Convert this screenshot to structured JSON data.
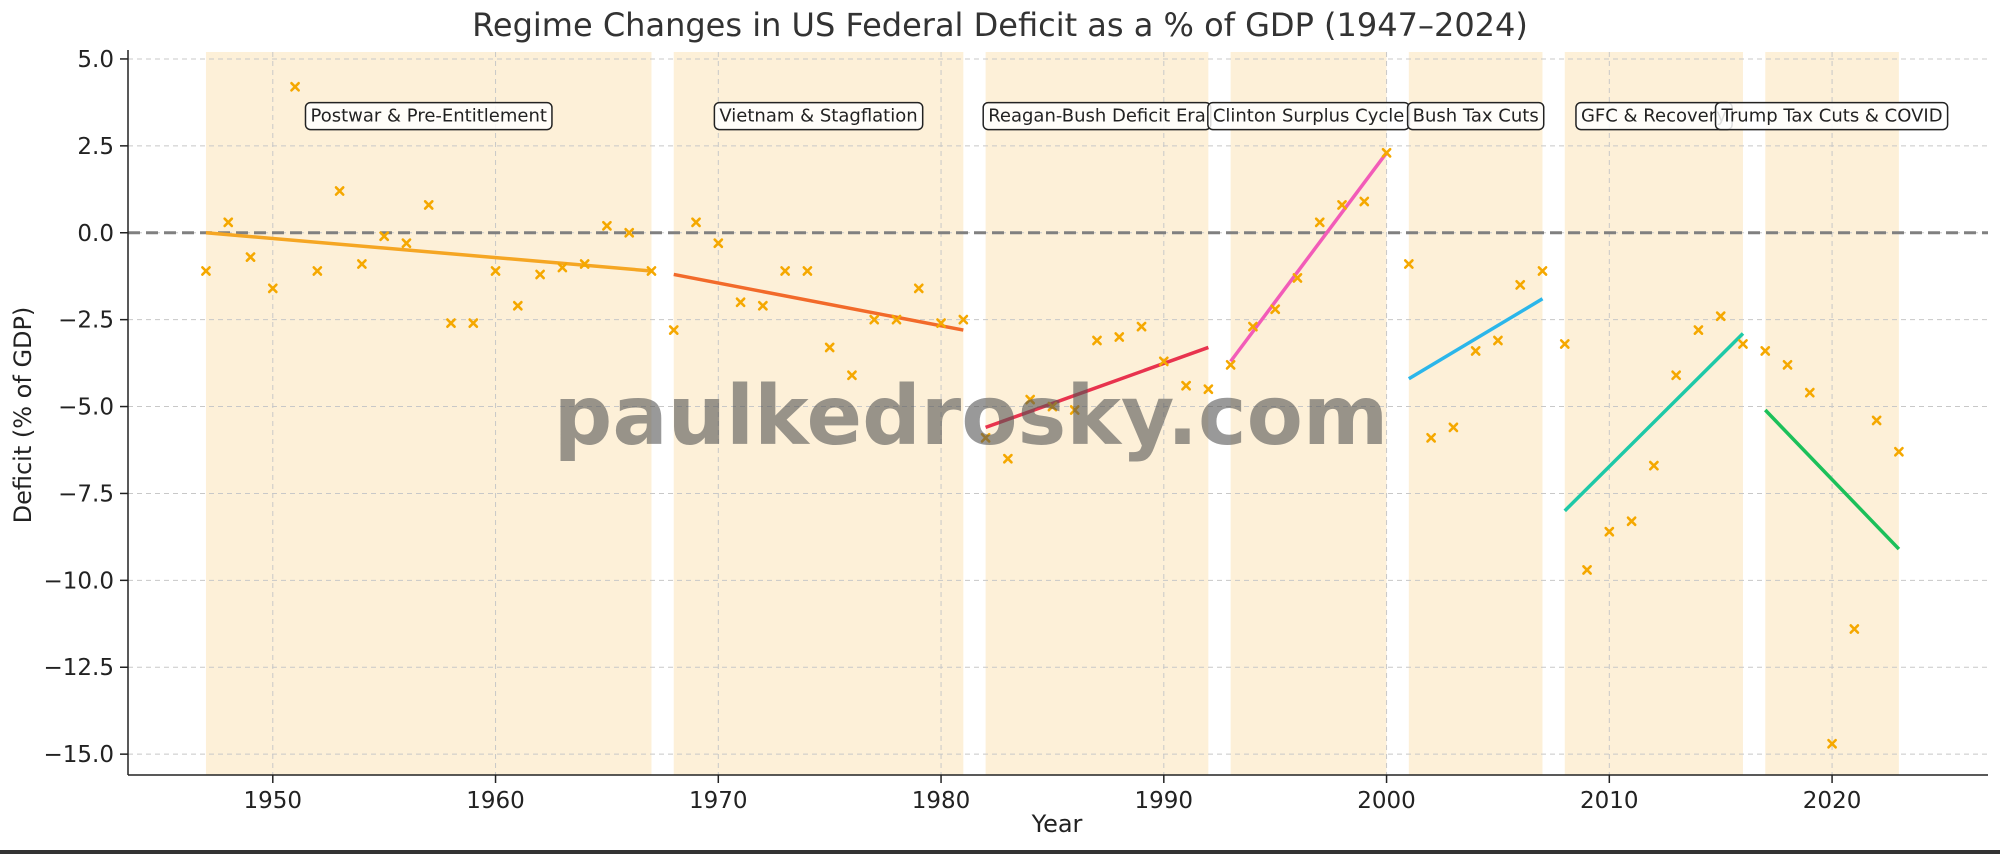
{
  "chart_data": {
    "type": "scatter",
    "title": "Regime Changes in US Federal Deficit as a % of GDP (1947–2024)",
    "xlabel": "Year",
    "ylabel": "Deficit (% of GDP)",
    "xlim": [
      1943.5,
      2027
    ],
    "ylim": [
      -15.6,
      5.2
    ],
    "xticks": [
      1950,
      1960,
      1970,
      1980,
      1990,
      2000,
      2010,
      2020
    ],
    "yticks": [
      5.0,
      2.5,
      0.0,
      -2.5,
      -5.0,
      -7.5,
      -10.0,
      -12.5,
      -15.0
    ],
    "grid": true,
    "reference_line": 0,
    "watermark": "paulkedrosky.com",
    "colors": {
      "band": "#fdf0d8",
      "points": "#f5a800",
      "zero_line": "#808080",
      "grid": "#c8c8c8"
    },
    "points": {
      "x": [
        1947,
        1948,
        1949,
        1950,
        1951,
        1952,
        1953,
        1954,
        1955,
        1956,
        1957,
        1958,
        1959,
        1960,
        1961,
        1962,
        1963,
        1964,
        1965,
        1966,
        1967,
        1968,
        1969,
        1970,
        1971,
        1972,
        1973,
        1974,
        1975,
        1976,
        1977,
        1978,
        1979,
        1980,
        1981,
        1982,
        1983,
        1984,
        1985,
        1986,
        1987,
        1988,
        1989,
        1990,
        1991,
        1992,
        1993,
        1994,
        1995,
        1996,
        1997,
        1998,
        1999,
        2000,
        2001,
        2002,
        2003,
        2004,
        2005,
        2006,
        2007,
        2008,
        2009,
        2010,
        2011,
        2012,
        2013,
        2014,
        2015,
        2016,
        2017,
        2018,
        2019,
        2020,
        2021,
        2022,
        2023
      ],
      "y": [
        -1.1,
        0.3,
        -0.7,
        -1.6,
        4.2,
        -1.1,
        1.2,
        -0.9,
        -0.1,
        -0.3,
        0.8,
        -2.6,
        -2.6,
        -1.1,
        -2.1,
        -1.2,
        -1.0,
        -0.9,
        0.2,
        0.0,
        -1.1,
        -2.8,
        0.3,
        -0.3,
        -2.0,
        -2.1,
        -1.1,
        -1.1,
        -3.3,
        -4.1,
        -2.5,
        -2.5,
        -1.6,
        -2.6,
        -2.5,
        -5.9,
        -6.5,
        -4.8,
        -5.0,
        -5.1,
        -3.1,
        -3.0,
        -2.7,
        -3.7,
        -4.4,
        -4.5,
        -3.8,
        -2.7,
        -2.2,
        -1.3,
        0.3,
        0.8,
        0.9,
        2.3,
        -0.9,
        -5.9,
        -5.6,
        -3.4,
        -3.1,
        -1.5,
        -1.1,
        -3.2,
        -9.7,
        -8.6,
        -8.3,
        -6.7,
        -4.1,
        -2.8,
        -2.4,
        -3.2,
        -3.4,
        -3.8,
        -4.6,
        -14.7,
        -11.4,
        -5.4,
        -6.3
      ]
    },
    "regimes": [
      {
        "label": "Postwar & Pre-Entitlement",
        "start": 1947,
        "end": 1967,
        "trend": [
          0.0,
          -1.1
        ],
        "color": "#f5a623"
      },
      {
        "label": "Vietnam & Stagflation",
        "start": 1968,
        "end": 1981,
        "trend": [
          -1.2,
          -2.8
        ],
        "color": "#f26a2a"
      },
      {
        "label": "Reagan-Bush Deficit Era",
        "start": 1982,
        "end": 1992,
        "trend": [
          -5.6,
          -3.3
        ],
        "color": "#e8334e"
      },
      {
        "label": "Clinton Surplus Cycle",
        "start": 1993,
        "end": 2000,
        "trend": [
          -3.7,
          2.3
        ],
        "color": "#f25cb8"
      },
      {
        "label": "Bush Tax Cuts",
        "start": 2001,
        "end": 2007,
        "trend": [
          -4.2,
          -1.9
        ],
        "color": "#2bb6ea"
      },
      {
        "label": "GFC & Recovery",
        "start": 2008,
        "end": 2016,
        "trend": [
          -8.0,
          -2.9
        ],
        "color": "#1ec9a8"
      },
      {
        "label": "Trump Tax Cuts & COVID",
        "start": 2017,
        "end": 2023,
        "trend": [
          -5.1,
          -9.1
        ],
        "color": "#1cc05a"
      }
    ]
  }
}
